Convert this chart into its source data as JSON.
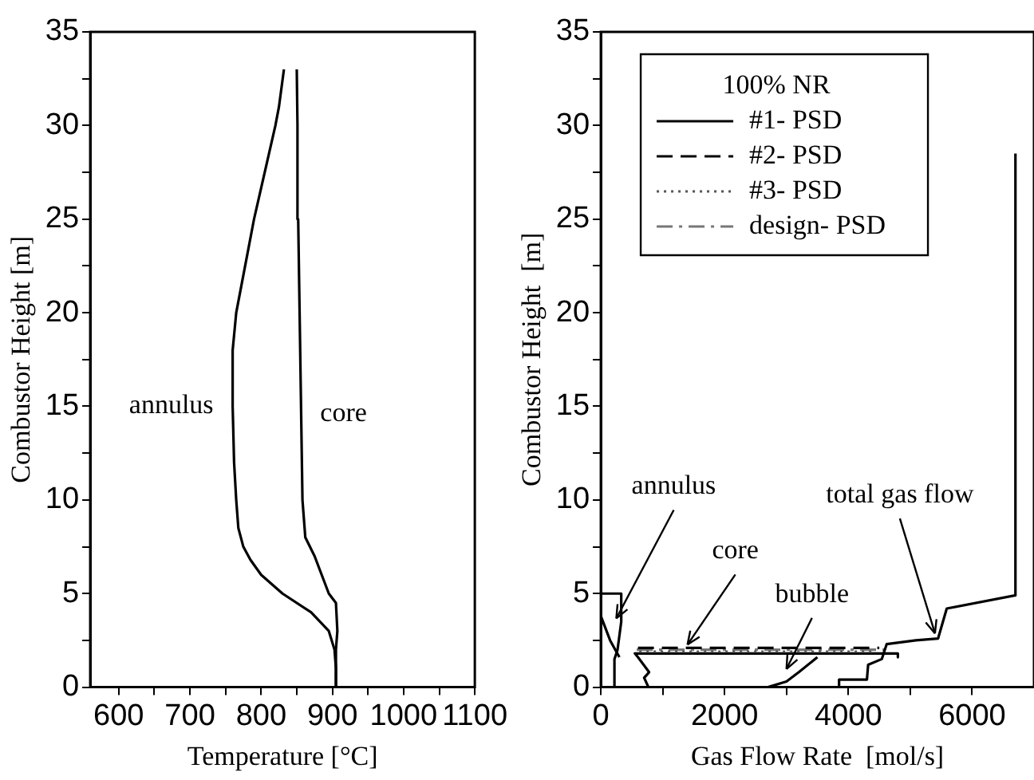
{
  "chart_data": [
    {
      "type": "line",
      "xlabel": "Temperature [°C]",
      "ylabel": "Combustor Height [m]",
      "xlim": [
        560,
        1100
      ],
      "xticks": [
        600,
        {
          "value": 650,
          "label": null
        },
        700,
        {
          "value": 750,
          "label": null
        },
        800,
        {
          "value": 850,
          "label": null
        },
        900,
        {
          "value": 950,
          "label": null
        },
        1000,
        {
          "value": 1050,
          "label": null
        },
        1100
      ],
      "ylim": [
        0,
        35
      ],
      "yticks": [
        0,
        {
          "value": 2.5,
          "label": null
        },
        5,
        {
          "value": 7.5,
          "label": null
        },
        10,
        {
          "value": 12.5,
          "label": null
        },
        15,
        {
          "value": 17.5,
          "label": null
        },
        20,
        {
          "value": 22.5,
          "label": null
        },
        25,
        {
          "value": 27.5,
          "label": null
        },
        30,
        {
          "value": 32.5,
          "label": null
        },
        35
      ],
      "grid": false,
      "legend": false,
      "series": [
        {
          "name": "annulus",
          "color": "#000000",
          "line_style": "solid",
          "x": [
            905,
            905,
            903,
            895,
            870,
            830,
            800,
            785,
            775,
            768,
            765,
            762,
            760,
            760,
            765,
            775,
            790,
            808,
            820,
            825,
            832
          ],
          "values": [
            0,
            1,
            2,
            3,
            4,
            5,
            6,
            6.8,
            7.5,
            8.5,
            10,
            12,
            15,
            18,
            20,
            22,
            25,
            28,
            30,
            31,
            33
          ]
        },
        {
          "name": "core",
          "color": "#000000",
          "line_style": "solid",
          "x": [
            905,
            905,
            907,
            905,
            895,
            885,
            875,
            862,
            858,
            856,
            854,
            852,
            851,
            850
          ],
          "values": [
            0,
            2,
            3,
            4.5,
            5,
            6,
            7,
            8,
            10,
            15,
            20,
            25,
            30,
            33
          ]
        }
      ]
    },
    {
      "type": "line",
      "xlabel": "Gas Flow Rate  [mol/s]",
      "ylabel": "Combustor Height  [m]",
      "xlim": [
        0,
        7000
      ],
      "xticks": [
        0,
        {
          "value": 1000,
          "label": null
        },
        2000,
        {
          "value": 3000,
          "label": null
        },
        4000,
        {
          "value": 5000,
          "label": null
        },
        6000
      ],
      "ylim": [
        0,
        35
      ],
      "yticks": [
        0,
        {
          "value": 2.5,
          "label": null
        },
        5,
        {
          "value": 7.5,
          "label": null
        },
        10,
        {
          "value": 12.5,
          "label": null
        },
        15,
        {
          "value": 17.5,
          "label": null
        },
        20,
        {
          "value": 22.5,
          "label": null
        },
        25,
        {
          "value": 27.5,
          "label": null
        },
        30,
        {
          "value": 32.5,
          "label": null
        },
        35
      ],
      "grid": false,
      "legend": "top left",
      "legend_title": "100% NR",
      "series": [
        {
          "name": "#1- PSD",
          "color": "#000000",
          "line_style": "solid",
          "x": [
            3850,
            3850,
            4300,
            4320,
            4540,
            4620,
            5090,
            5450,
            5590,
            6690,
            6700,
            6700
          ],
          "values": [
            0,
            0.4,
            0.4,
            1.2,
            1.5,
            2.3,
            2.5,
            2.6,
            4.2,
            4.9,
            4.9,
            28.5
          ]
        },
        {
          "name": "#2- PSD",
          "color": "#000000",
          "line_style": "dashed",
          "x": [
            600,
            4500
          ],
          "values": [
            2.1,
            2.1
          ]
        },
        {
          "name": "#3- PSD",
          "color": "#555555",
          "line_style": "dotted",
          "x": [
            620,
            4400
          ],
          "values": [
            1.9,
            1.9
          ]
        },
        {
          "name": "design- PSD",
          "color": "#777777",
          "line_style": "dashdot",
          "x": [
            580,
            4600
          ],
          "values": [
            2,
            2
          ]
        },
        {
          "color": "#000000",
          "line_style": "solid",
          "x": [
            0,
            330,
            330,
            270,
            220,
            220
          ],
          "values": [
            5,
            5,
            3.5,
            2,
            1.5,
            0
          ]
        },
        {
          "color": "#000000",
          "line_style": "solid",
          "x": [
            0,
            150,
            300
          ],
          "values": [
            3.8,
            2.5,
            1.6
          ]
        },
        {
          "color": "#000000",
          "line_style": "solid",
          "x": [
            770,
            700,
            780,
            600,
            550,
            4800,
            4800
          ],
          "values": [
            0,
            0.5,
            0.8,
            1.6,
            1.8,
            1.8,
            1.6
          ]
        },
        {
          "color": "#000000",
          "line_style": "solid",
          "x": [
            2700,
            3000,
            3200,
            3500
          ],
          "values": [
            0,
            0.3,
            0.8,
            1.6
          ]
        }
      ],
      "annotations": [
        {
          "text": "annulus",
          "x": 250,
          "y": 3.5
        },
        {
          "text": "core",
          "x": 1400,
          "y": 2.1
        },
        {
          "text": "bubble",
          "x": 3000,
          "y": 0.8
        },
        {
          "text": "total gas flow",
          "x": 5400,
          "y": 2.7
        }
      ]
    }
  ]
}
